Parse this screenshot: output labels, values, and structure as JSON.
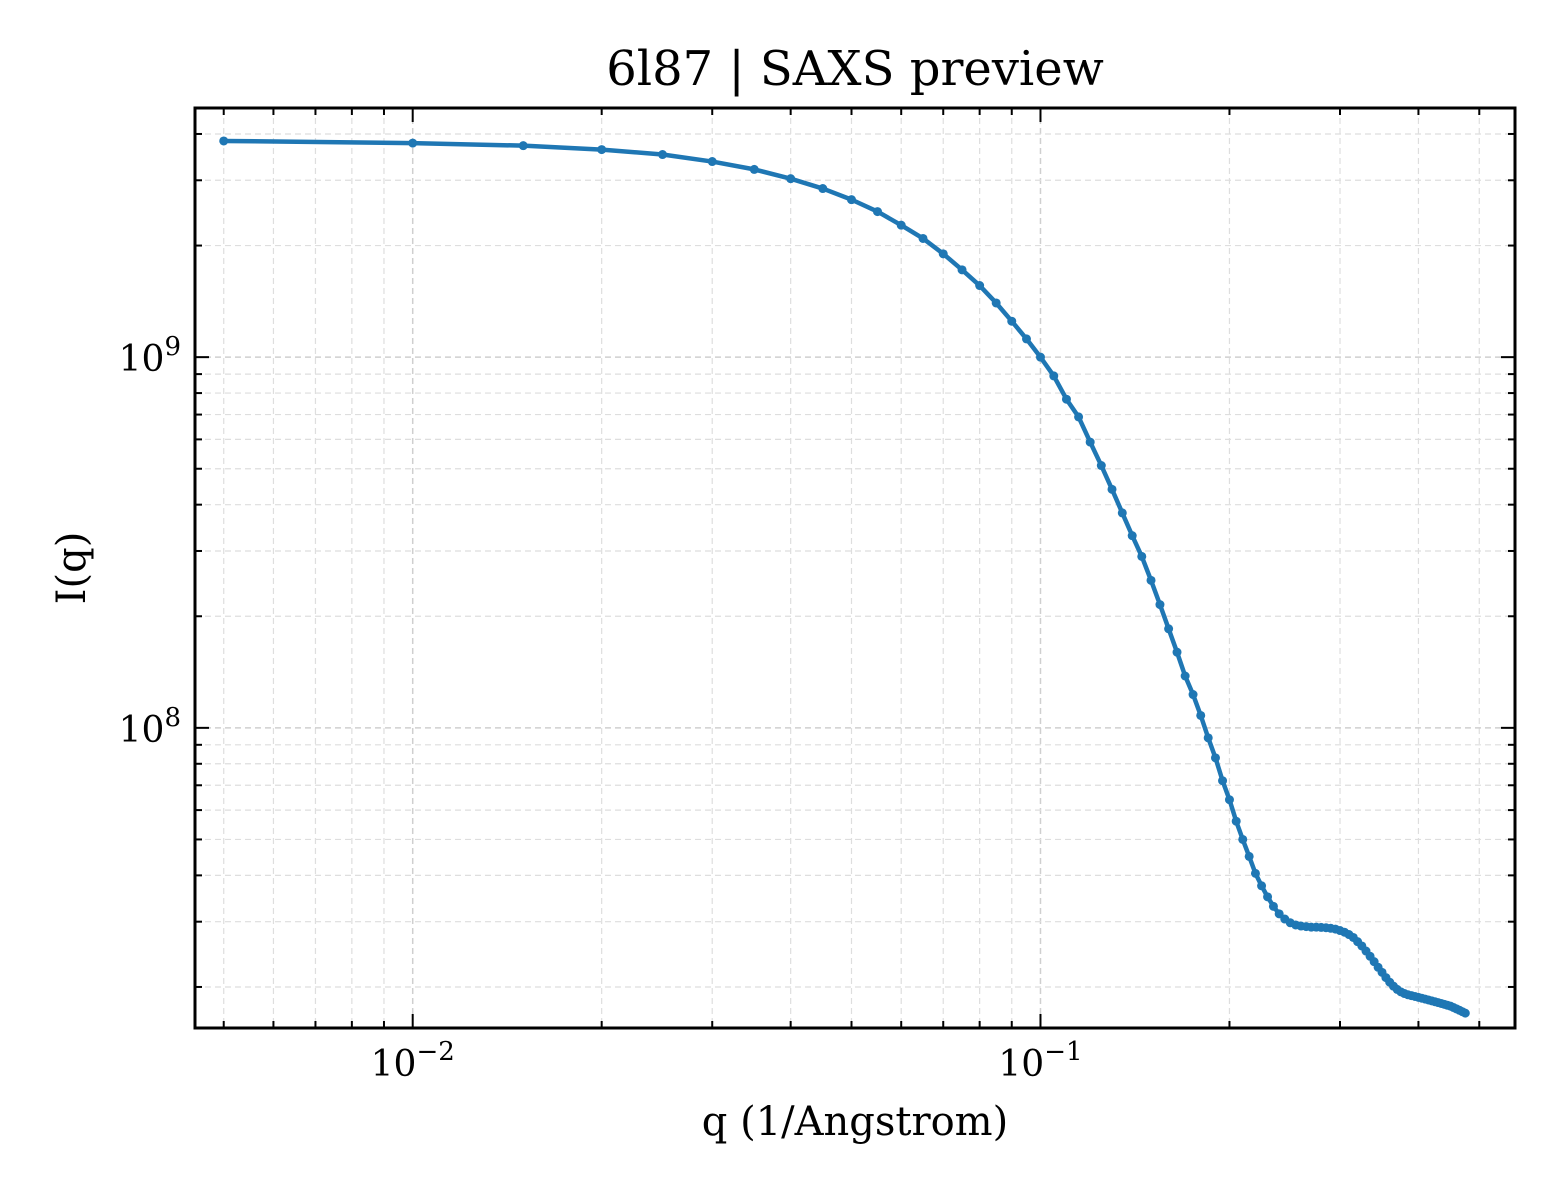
{
  "chart_data": {
    "type": "line",
    "title": "6l87 | SAXS preview",
    "xlabel": "q (1/Angstrom)",
    "ylabel": "I(q)",
    "xscale": "log",
    "yscale": "log",
    "xlim": [
      0.0045,
      0.57
    ],
    "ylim": [
      15500000,
      4700000000
    ],
    "grid": true,
    "x_ticks": [
      {
        "value": 0.01,
        "base": "10",
        "exp": "−2"
      },
      {
        "value": 0.1,
        "base": "10",
        "exp": "−1"
      }
    ],
    "y_ticks": [
      {
        "value": 100000000,
        "base": "10",
        "exp": "8"
      },
      {
        "value": 1000000000,
        "base": "10",
        "exp": "9"
      }
    ],
    "series": [
      {
        "color": "#1f77b4",
        "marker": "dot",
        "points": [
          [
            0.005,
            3830000000
          ],
          [
            0.01,
            3780000000
          ],
          [
            0.015,
            3720000000
          ],
          [
            0.02,
            3630000000
          ],
          [
            0.025,
            3520000000
          ],
          [
            0.03,
            3370000000
          ],
          [
            0.035,
            3210000000
          ],
          [
            0.04,
            3030000000
          ],
          [
            0.045,
            2850000000
          ],
          [
            0.05,
            2660000000
          ],
          [
            0.055,
            2470000000
          ],
          [
            0.06,
            2270000000
          ],
          [
            0.065,
            2090000000
          ],
          [
            0.07,
            1900000000
          ],
          [
            0.075,
            1720000000
          ],
          [
            0.08,
            1560000000
          ],
          [
            0.085,
            1400000000
          ],
          [
            0.09,
            1250000000
          ],
          [
            0.095,
            1120000000
          ],
          [
            0.1,
            1000000000
          ],
          [
            0.105,
            890000000
          ],
          [
            0.11,
            770000000
          ],
          [
            0.115,
            690000000
          ],
          [
            0.12,
            590000000
          ],
          [
            0.125,
            510000000
          ],
          [
            0.13,
            440000000
          ],
          [
            0.135,
            380000000
          ],
          [
            0.14,
            330000000
          ],
          [
            0.145,
            290000000
          ],
          [
            0.15,
            250000000
          ],
          [
            0.155,
            215000000
          ],
          [
            0.16,
            185000000
          ],
          [
            0.165,
            160000000
          ],
          [
            0.17,
            138000000
          ],
          [
            0.175,
            123000000
          ],
          [
            0.18,
            108000000
          ],
          [
            0.185,
            94000000
          ],
          [
            0.19,
            83000000
          ],
          [
            0.195,
            72000000
          ],
          [
            0.2,
            64000000
          ],
          [
            0.205,
            56000000
          ],
          [
            0.21,
            50000000
          ],
          [
            0.215,
            45000000
          ],
          [
            0.22,
            40500000
          ],
          [
            0.225,
            37500000
          ],
          [
            0.23,
            35000000
          ],
          [
            0.235,
            33000000
          ],
          [
            0.24,
            31500000
          ],
          [
            0.245,
            30500000
          ],
          [
            0.25,
            29800000
          ],
          [
            0.255,
            29400000
          ],
          [
            0.26,
            29200000
          ],
          [
            0.265,
            29100000
          ],
          [
            0.27,
            29000000
          ],
          [
            0.275,
            29000000
          ],
          [
            0.28,
            28950000
          ],
          [
            0.285,
            28900000
          ],
          [
            0.29,
            28800000
          ],
          [
            0.295,
            28650000
          ],
          [
            0.3,
            28400000
          ],
          [
            0.305,
            28100000
          ],
          [
            0.31,
            27700000
          ],
          [
            0.315,
            27200000
          ],
          [
            0.32,
            26500000
          ],
          [
            0.325,
            25800000
          ],
          [
            0.33,
            25000000
          ],
          [
            0.335,
            24200000
          ],
          [
            0.34,
            23400000
          ],
          [
            0.345,
            22600000
          ],
          [
            0.35,
            21900000
          ],
          [
            0.355,
            21200000
          ],
          [
            0.36,
            20600000
          ],
          [
            0.365,
            20100000
          ],
          [
            0.37,
            19700000
          ],
          [
            0.375,
            19400000
          ],
          [
            0.38,
            19200000
          ],
          [
            0.385,
            19050000
          ],
          [
            0.39,
            18950000
          ],
          [
            0.395,
            18850000
          ],
          [
            0.4,
            18750000
          ],
          [
            0.405,
            18650000
          ],
          [
            0.41,
            18550000
          ],
          [
            0.415,
            18450000
          ],
          [
            0.42,
            18350000
          ],
          [
            0.425,
            18250000
          ],
          [
            0.43,
            18150000
          ],
          [
            0.435,
            18050000
          ],
          [
            0.44,
            17950000
          ],
          [
            0.445,
            17850000
          ],
          [
            0.45,
            17750000
          ],
          [
            0.455,
            17600000
          ],
          [
            0.46,
            17450000
          ],
          [
            0.465,
            17300000
          ],
          [
            0.47,
            17150000
          ],
          [
            0.475,
            17000000
          ]
        ]
      }
    ]
  }
}
